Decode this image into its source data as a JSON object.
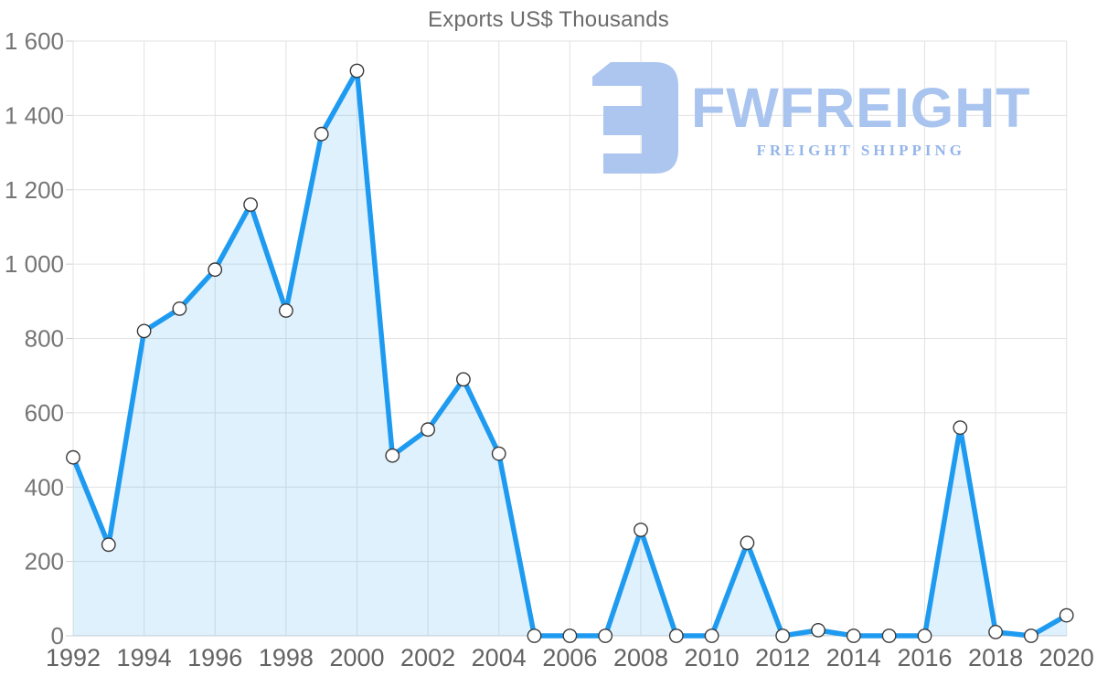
{
  "chart": {
    "title": "Exports US$ Thousands"
  },
  "watermark": {
    "brand": "FWFREIGHT",
    "tagline": "FREIGHT SHIPPING",
    "logo_color": "#adc6f0"
  },
  "chart_data": {
    "type": "area",
    "title": "Exports US$ Thousands",
    "xlabel": "",
    "ylabel": "",
    "x": [
      1992,
      1993,
      1994,
      1995,
      1996,
      1997,
      1998,
      1999,
      2000,
      2001,
      2002,
      2003,
      2004,
      2005,
      2006,
      2007,
      2008,
      2009,
      2010,
      2011,
      2012,
      2013,
      2014,
      2015,
      2016,
      2017,
      2018,
      2019,
      2020
    ],
    "values": [
      480,
      245,
      820,
      880,
      985,
      1160,
      875,
      1350,
      1520,
      485,
      555,
      690,
      490,
      0,
      0,
      0,
      285,
      0,
      0,
      250,
      0,
      15,
      0,
      0,
      0,
      560,
      10,
      0,
      55
    ],
    "ylim": [
      0,
      1600
    ],
    "y_ticks": [
      0,
      200,
      400,
      600,
      800,
      1000,
      1200,
      1400,
      1600
    ],
    "y_tick_labels": [
      "0",
      "200",
      "400",
      "600",
      "800",
      "1 000",
      "1 200",
      "1 400",
      "1 600"
    ],
    "x_tick_labels": [
      "1992",
      "1994",
      "1996",
      "1998",
      "2000",
      "2002",
      "2004",
      "2006",
      "2008",
      "2010",
      "2012",
      "2014",
      "2016",
      "2018",
      "2020"
    ],
    "grid": true,
    "legend": "none",
    "colors": {
      "line": "#1e9bf0",
      "area_fill": "rgba(30,155,240,0.14)",
      "marker_fill": "#ffffff",
      "marker_stroke": "#3a3a3a",
      "grid": "#e2e2e2",
      "axis_line": "#cfcfcf",
      "y_label_text": "#757575",
      "x_label_text": "#636363",
      "title_text": "#6b6b6b"
    }
  }
}
